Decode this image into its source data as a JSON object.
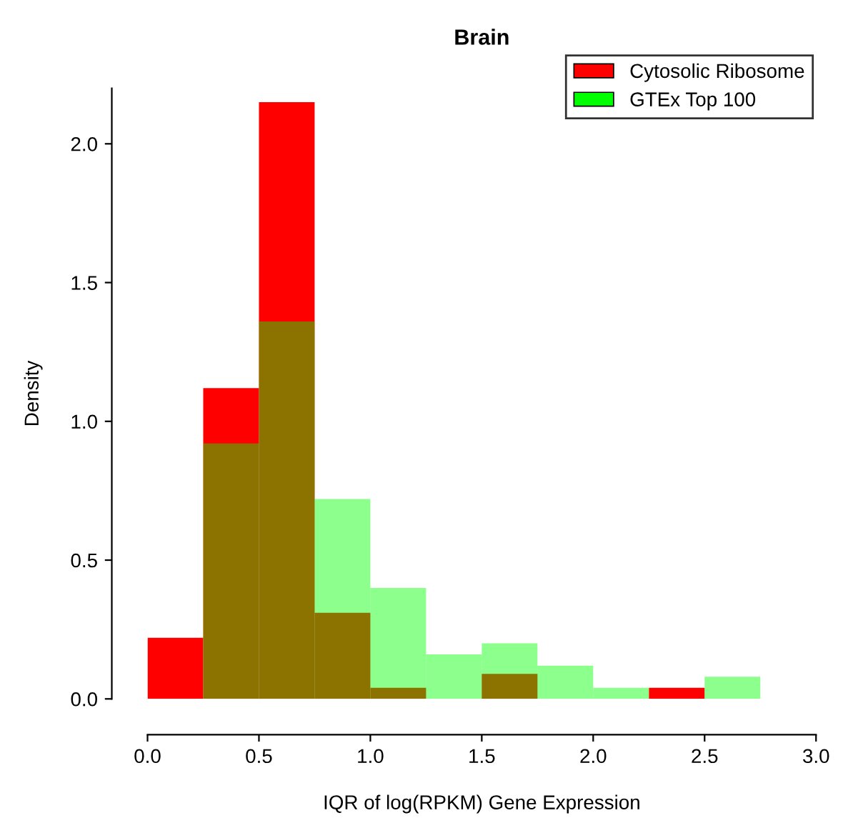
{
  "chart_data": {
    "type": "histogram",
    "title": "Brain",
    "xlabel": "IQR of log(RPKM) Gene Expression",
    "ylabel": "Density",
    "bins": [
      0,
      0.25,
      0.5,
      0.75,
      1.0,
      1.25,
      1.5,
      1.75,
      2.0,
      2.25,
      2.5,
      2.75
    ],
    "series": [
      {
        "name": "Cytosolic Ribosome",
        "color": "#ff0000",
        "values": [
          0.22,
          1.12,
          2.15,
          0.31,
          0.04,
          0,
          0.09,
          0,
          0,
          0.04,
          0
        ]
      },
      {
        "name": "GTEx Top 100",
        "color": "#00ff00",
        "values": [
          0,
          0.92,
          1.36,
          0.72,
          0.4,
          0.16,
          0.2,
          0.12,
          0.04,
          0,
          0.08
        ]
      }
    ],
    "xlim": [
      0,
      3
    ],
    "xticks": [
      {
        "value": 0,
        "label": "0.0"
      },
      {
        "value": 0.5,
        "label": "0.5"
      },
      {
        "value": 1,
        "label": "1.0"
      },
      {
        "value": 1.5,
        "label": "1.5"
      },
      {
        "value": 2,
        "label": "2.0"
      },
      {
        "value": 2.5,
        "label": "2.5"
      },
      {
        "value": 3,
        "label": "3.0"
      }
    ],
    "ylim": [
      0,
      2.2
    ],
    "yticks": [
      {
        "value": 0,
        "label": "0.0"
      },
      {
        "value": 0.5,
        "label": "0.5"
      },
      {
        "value": 1,
        "label": "1.0"
      },
      {
        "value": 1.5,
        "label": "1.5"
      },
      {
        "value": 2,
        "label": "2.0"
      }
    ],
    "legend": "top right",
    "grid": false
  }
}
